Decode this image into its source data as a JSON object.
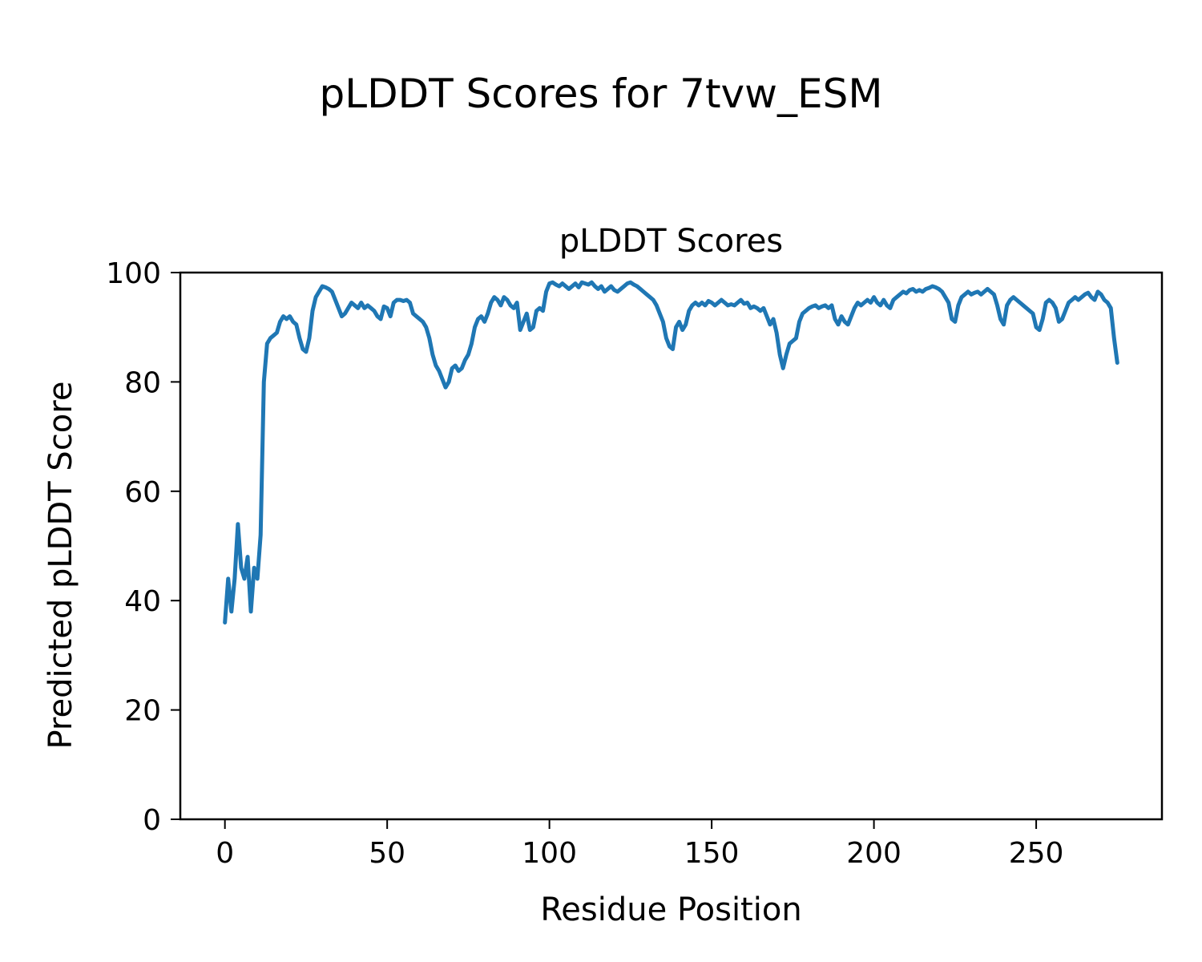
{
  "figure": {
    "suptitle": "pLDDT Scores for 7tvw_ESM",
    "axes_title": "pLDDT Scores",
    "xlabel": "Residue Position",
    "ylabel": "Predicted pLDDT Score"
  },
  "chart_data": {
    "type": "line",
    "title": "pLDDT Scores",
    "suptitle": "pLDDT Scores for 7tvw_ESM",
    "xlabel": "Residue Position",
    "ylabel": "Predicted pLDDT Score",
    "legend": null,
    "grid": false,
    "line_color": "#1f77b4",
    "line_width": 5,
    "xlim": [
      -13.75,
      288.75
    ],
    "ylim": [
      0,
      100
    ],
    "xticks": [
      0,
      50,
      100,
      150,
      200,
      250
    ],
    "yticks": [
      0,
      20,
      40,
      60,
      80,
      100
    ],
    "x_start": 0,
    "x_step": 1,
    "values": [
      36,
      44,
      38,
      44,
      54,
      46,
      44,
      48,
      38,
      46,
      44,
      52,
      80,
      87,
      88,
      88.5,
      89,
      91,
      92,
      91.5,
      92,
      91,
      90.5,
      88,
      86,
      85.5,
      88,
      93,
      95.5,
      96.5,
      97.5,
      97.3,
      97,
      96.5,
      95,
      93.5,
      92,
      92.5,
      93.5,
      94.5,
      94,
      93.5,
      94.5,
      93.5,
      94,
      93.5,
      93,
      92,
      91.5,
      93.8,
      93.5,
      92,
      94.5,
      95,
      95,
      94.8,
      95,
      94.5,
      92.5,
      92,
      91.5,
      91,
      90,
      88,
      85,
      83,
      82,
      80.5,
      79,
      80,
      82.5,
      83,
      82,
      82.5,
      84,
      85,
      87,
      90,
      91.5,
      92,
      91,
      92.5,
      94.5,
      95.5,
      95,
      94,
      95.5,
      95,
      94,
      93.5,
      94.5,
      89.5,
      91,
      92.5,
      89.5,
      90,
      93,
      93.5,
      93,
      96.5,
      98,
      98.2,
      97.8,
      97.5,
      98,
      97.5,
      97,
      97.5,
      98,
      97.3,
      98.2,
      98,
      97.8,
      98.2,
      97.5,
      97,
      97.5,
      96.5,
      97,
      97.5,
      96.8,
      96.5,
      97,
      97.5,
      98,
      98.2,
      97.8,
      97.5,
      97,
      96.5,
      96,
      95.5,
      95,
      94,
      92.5,
      91,
      88,
      86.5,
      86,
      90,
      91,
      89.5,
      90.5,
      93,
      94,
      94.5,
      94,
      94.5,
      94,
      94.8,
      94.5,
      94,
      94.5,
      95,
      94.5,
      94,
      94.2,
      94,
      94.5,
      95,
      94.3,
      94.5,
      93.5,
      93.8,
      93.5,
      93,
      93.5,
      92,
      90.5,
      91.5,
      89,
      85,
      82.5,
      85,
      87,
      87.5,
      88,
      91,
      92.5,
      93,
      93.5,
      93.8,
      94,
      93.5,
      93.8,
      94,
      93.5,
      94,
      91.5,
      90.5,
      92,
      91,
      90.5,
      92,
      93.5,
      94.5,
      94,
      94.5,
      95,
      94.5,
      95.5,
      94.5,
      94,
      95,
      94,
      93.5,
      95,
      95.5,
      96,
      96.5,
      96.2,
      96.8,
      97,
      96.5,
      96.8,
      96.5,
      97,
      97.2,
      97.5,
      97.3,
      97,
      96.5,
      95.5,
      94.5,
      91.5,
      91,
      94,
      95.5,
      96,
      96.5,
      96,
      96.3,
      96.5,
      96,
      96.5,
      97,
      96.5,
      96,
      94,
      91.5,
      90.5,
      94,
      95,
      95.5,
      95,
      94.5,
      94,
      93.5,
      93,
      92.5,
      90,
      89.5,
      91.5,
      94.5,
      95,
      94.5,
      93.5,
      91,
      91.5,
      93,
      94.5,
      95,
      95.5,
      95,
      95.5,
      96,
      96.3,
      95.5,
      95,
      96.5,
      96,
      95,
      94.5,
      93.5,
      88,
      83.5
    ]
  }
}
